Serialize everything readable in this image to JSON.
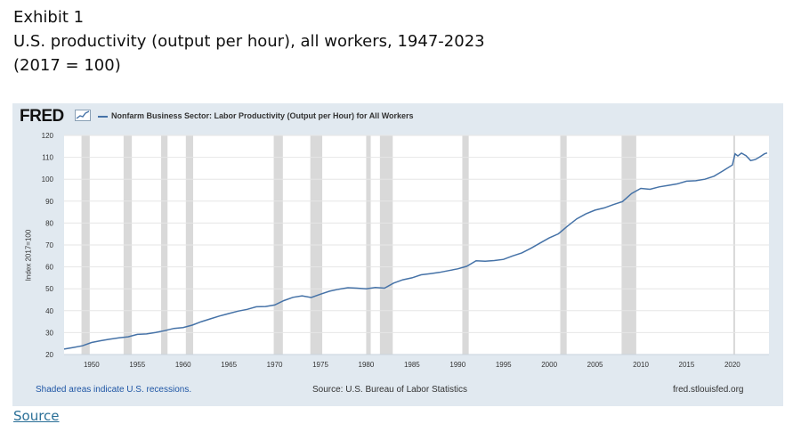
{
  "exhibit": {
    "label": "Exhibit 1",
    "title": "U.S. productivity (output per hour), all workers, 1947-2023",
    "subtitle": "(2017 = 100)"
  },
  "fred": {
    "logo_text": "FRED",
    "footer_left": "Shaded areas indicate U.S. recessions.",
    "footer_mid": "Source: U.S. Bureau of Labor Statistics",
    "footer_right": "fred.stlouisfed.org"
  },
  "source_link": "Source",
  "colors": {
    "line": "#4572a7",
    "recession": "#d9d9d9",
    "panel": "#e1e9f0"
  },
  "chart_data": {
    "type": "line",
    "series": [
      {
        "name": "Nonfarm Business Sector: Labor Productivity (Output per Hour) for All Workers",
        "x": [
          1947,
          1948,
          1949,
          1950,
          1951,
          1952,
          1953,
          1954,
          1955,
          1956,
          1957,
          1958,
          1959,
          1960,
          1961,
          1962,
          1963,
          1964,
          1965,
          1966,
          1967,
          1968,
          1969,
          1970,
          1971,
          1972,
          1973,
          1974,
          1975,
          1976,
          1977,
          1978,
          1979,
          1980,
          1981,
          1982,
          1983,
          1984,
          1985,
          1986,
          1987,
          1988,
          1989,
          1990,
          1991,
          1992,
          1993,
          1994,
          1995,
          1996,
          1997,
          1998,
          1999,
          2000,
          2001,
          2002,
          2003,
          2004,
          2005,
          2006,
          2007,
          2008,
          2009,
          2010,
          2011,
          2012,
          2013,
          2014,
          2015,
          2016,
          2017,
          2018,
          2019,
          2020,
          2020.3,
          2020.6,
          2021,
          2021.5,
          2022,
          2022.5,
          2023,
          2023.5,
          2023.8
        ],
        "values": [
          22.5,
          23.2,
          24.0,
          25.5,
          26.3,
          27.0,
          27.6,
          28.1,
          29.2,
          29.4,
          30.1,
          30.9,
          31.9,
          32.3,
          33.4,
          35.0,
          36.3,
          37.6,
          38.7,
          39.8,
          40.6,
          41.8,
          41.9,
          42.6,
          44.6,
          46.1,
          46.8,
          46.0,
          47.5,
          48.9,
          49.8,
          50.5,
          50.3,
          50.0,
          50.6,
          50.3,
          52.6,
          54.1,
          55.0,
          56.4,
          56.9,
          57.5,
          58.3,
          59.1,
          60.3,
          62.8,
          62.6,
          62.9,
          63.4,
          65.0,
          66.4,
          68.5,
          70.9,
          73.2,
          75.1,
          78.6,
          81.9,
          84.2,
          85.9,
          86.9,
          88.4,
          89.8,
          93.5,
          95.8,
          95.4,
          96.5,
          97.2,
          97.9,
          99.1,
          99.3,
          100.0,
          101.4,
          103.9,
          106.5,
          111.6,
          110.6,
          111.9,
          110.7,
          108.5,
          109.0,
          110.2,
          111.6,
          112.0
        ]
      }
    ],
    "recessions": [
      [
        1948.9,
        1949.8
      ],
      [
        1953.5,
        1954.4
      ],
      [
        1957.6,
        1958.3
      ],
      [
        1960.3,
        1961.1
      ],
      [
        1969.9,
        1970.9
      ],
      [
        1973.9,
        1975.2
      ],
      [
        1980.0,
        1980.5
      ],
      [
        1981.5,
        1982.9
      ],
      [
        1990.5,
        1991.2
      ],
      [
        2001.2,
        2001.9
      ],
      [
        2007.9,
        2009.5
      ],
      [
        2020.1,
        2020.3
      ]
    ],
    "xlim": [
      1947,
      2024
    ],
    "ylim": [
      20,
      120
    ],
    "x_ticks": [
      1950,
      1955,
      1960,
      1965,
      1970,
      1975,
      1980,
      1985,
      1990,
      1995,
      2000,
      2005,
      2010,
      2015,
      2020
    ],
    "y_ticks": [
      20,
      30,
      40,
      50,
      60,
      70,
      80,
      90,
      100,
      110,
      120
    ],
    "ylabel": "Index 2017=100",
    "grid": true,
    "legend_position": "top"
  }
}
